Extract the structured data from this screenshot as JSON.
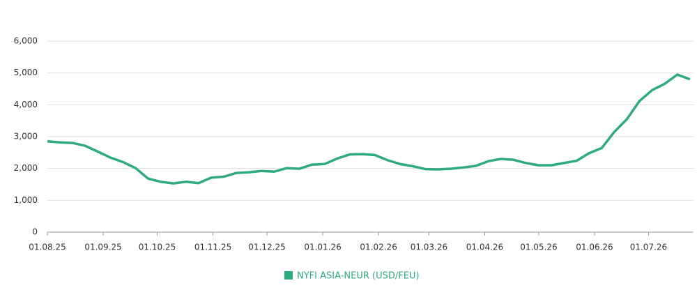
{
  "chart_data": {
    "type": "line",
    "x": [
      "2025-08-01",
      "2025-08-08",
      "2025-08-15",
      "2025-08-22",
      "2025-08-29",
      "2025-09-05",
      "2025-09-12",
      "2025-09-19",
      "2025-09-26",
      "2025-10-03",
      "2025-10-10",
      "2025-10-17",
      "2025-10-24",
      "2025-10-31",
      "2025-11-07",
      "2025-11-14",
      "2025-11-21",
      "2025-11-28",
      "2025-12-05",
      "2025-12-12",
      "2025-12-19",
      "2025-12-26",
      "2026-01-02",
      "2026-01-09",
      "2026-01-16",
      "2026-01-23",
      "2026-01-30",
      "2026-02-06",
      "2026-02-13",
      "2026-02-20",
      "2026-02-27",
      "2026-03-06",
      "2026-03-13",
      "2026-03-20",
      "2026-03-27",
      "2026-04-03",
      "2026-04-10",
      "2026-04-17",
      "2026-04-24",
      "2026-05-01",
      "2026-05-08",
      "2026-05-15",
      "2026-05-22",
      "2026-05-29",
      "2026-06-05",
      "2026-06-12",
      "2026-06-19",
      "2026-06-26",
      "2026-07-03",
      "2026-07-10",
      "2026-07-17",
      "2026-07-24"
    ],
    "series": [
      {
        "name": "NYFI ASIA-NEUR (USD/FEU)",
        "color": "#2eab7c",
        "values": [
          2850,
          2820,
          2800,
          2710,
          2530,
          2340,
          2200,
          2010,
          1680,
          1580,
          1530,
          1580,
          1540,
          1710,
          1740,
          1860,
          1880,
          1920,
          1900,
          2010,
          1990,
          2120,
          2140,
          2310,
          2440,
          2450,
          2420,
          2260,
          2140,
          2070,
          1980,
          1970,
          1990,
          2030,
          2080,
          2230,
          2300,
          2270,
          2170,
          2100,
          2100,
          2170,
          2240,
          2480,
          2640,
          3150,
          3550,
          4120,
          4460,
          4660,
          4950,
          4800
        ]
      }
    ],
    "xlim": [
      "2025-08-01",
      "2026-07-26"
    ],
    "xticks": [
      {
        "value": "2025-08-01",
        "label": "01.08.25"
      },
      {
        "value": "2025-09-01",
        "label": "01.09.25"
      },
      {
        "value": "2025-10-01",
        "label": "01.10.25"
      },
      {
        "value": "2025-11-01",
        "label": "01.11.25"
      },
      {
        "value": "2025-12-01",
        "label": "01.12.25"
      },
      {
        "value": "2026-01-01",
        "label": "01.01.26"
      },
      {
        "value": "2026-02-01",
        "label": "01.02.26"
      },
      {
        "value": "2026-03-01",
        "label": "01.03.26"
      },
      {
        "value": "2026-04-01",
        "label": "01.04.26"
      },
      {
        "value": "2026-05-01",
        "label": "01.05.26"
      },
      {
        "value": "2026-06-01",
        "label": "01.06.26"
      },
      {
        "value": "2026-07-01",
        "label": "01.07.26"
      }
    ],
    "ylim": [
      0,
      6000
    ],
    "yticks": [
      0,
      {
        "value": 1000,
        "label": "1,000"
      },
      {
        "value": 2000,
        "label": "2,000"
      },
      {
        "value": 3000,
        "label": "3,000"
      },
      {
        "value": 4000,
        "label": "4,000"
      },
      {
        "value": 5000,
        "label": "5,000"
      },
      {
        "value": 6000,
        "label": "6,000"
      }
    ],
    "grid": true,
    "legend": "bottom"
  }
}
